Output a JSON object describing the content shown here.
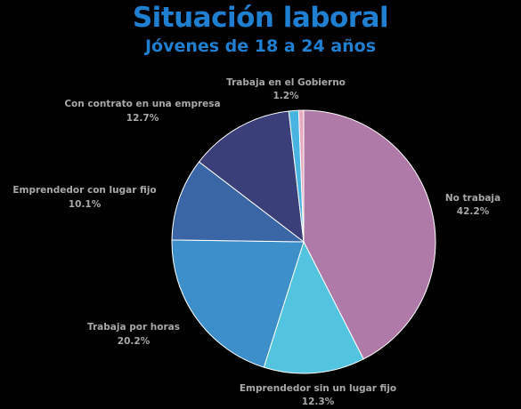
{
  "chart_data": {
    "type": "pie",
    "title": "Situación laboral",
    "subtitle": "Jóvenes de 18 a 24 años",
    "slices": [
      {
        "label": "No trabaja",
        "value": 42.2,
        "value_label": "42.2%",
        "color": "#b07aa8"
      },
      {
        "label": "Emprendedor sin un lugar fijo",
        "value": 12.3,
        "value_label": "12.3%",
        "color": "#52c4e0"
      },
      {
        "label": "Trabaja por horas",
        "value": 20.2,
        "value_label": "20.2%",
        "color": "#3d8fca"
      },
      {
        "label": "Emprendedor con lugar fijo",
        "value": 10.1,
        "value_label": "10.1%",
        "color": "#3b66a6"
      },
      {
        "label": "Con contrato en una empresa",
        "value": 12.7,
        "value_label": "12.7%",
        "color": "#3a3f7a"
      },
      {
        "label": "Trabaja en el Gobierno",
        "value": 1.2,
        "value_label": "1.2%",
        "color": "#49b3e2"
      },
      {
        "value": 0.6,
        "color": "#e6a9bf"
      }
    ]
  }
}
